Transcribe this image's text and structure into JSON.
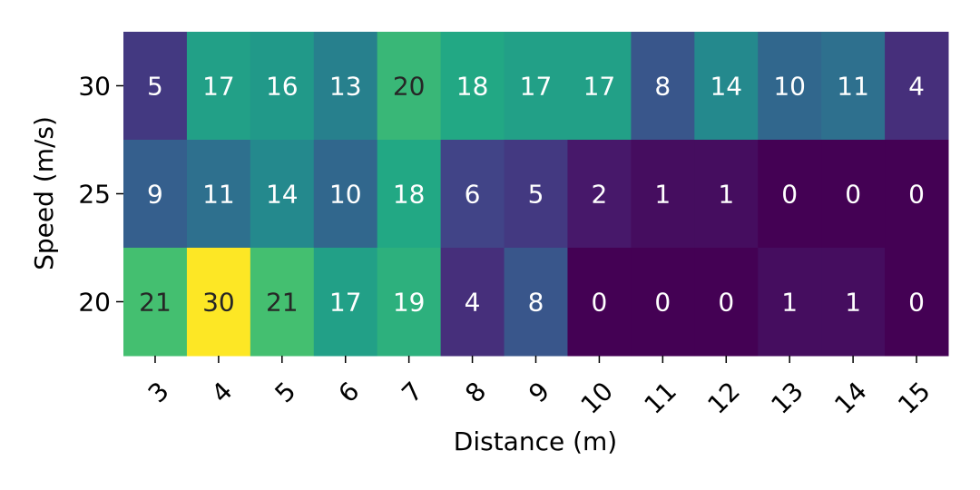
{
  "chart_data": {
    "type": "heatmap",
    "xlabel": "Distance (m)",
    "ylabel": "Speed (m/s)",
    "x_categories": [
      "3",
      "4",
      "5",
      "6",
      "7",
      "8",
      "9",
      "10",
      "11",
      "12",
      "13",
      "14",
      "15"
    ],
    "y_categories": [
      "30",
      "25",
      "20"
    ],
    "values": [
      [
        5,
        17,
        16,
        13,
        20,
        18,
        17,
        17,
        8,
        14,
        10,
        11,
        4
      ],
      [
        9,
        11,
        14,
        10,
        18,
        6,
        5,
        2,
        1,
        1,
        0,
        0,
        0
      ],
      [
        21,
        30,
        21,
        17,
        19,
        4,
        8,
        0,
        0,
        0,
        1,
        1,
        0
      ]
    ],
    "value_range": [
      0,
      30
    ],
    "colormap": "viridis",
    "annotations": true,
    "colorbar": false,
    "x_tick_rotation": "45 degrees"
  }
}
